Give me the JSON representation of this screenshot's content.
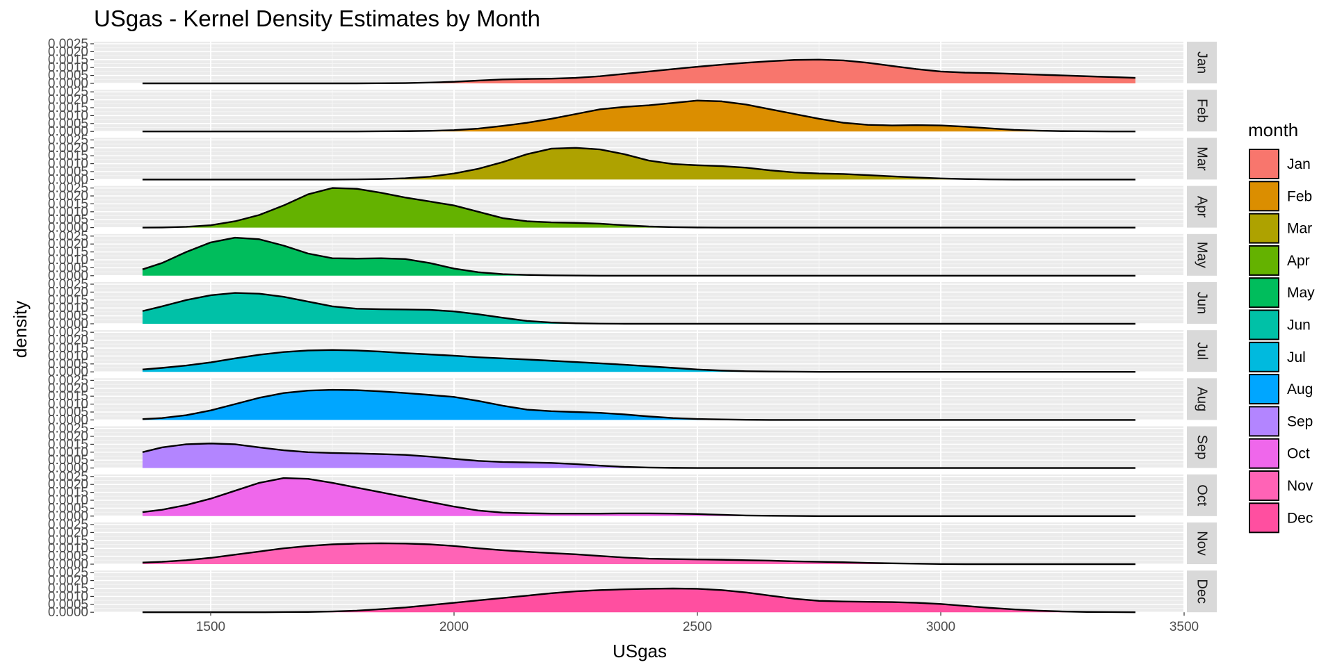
{
  "chart_data": {
    "type": "area",
    "subtype": "faceted-kernel-density",
    "title": "USgas - Kernel Density Estimates by Month",
    "xlabel": "USgas",
    "ylabel": "density",
    "xlim": [
      1260,
      3500
    ],
    "ylim": [
      0,
      0.0025
    ],
    "x_ticks": [
      1500,
      2000,
      2500,
      3000,
      3500
    ],
    "x_tick_labels": [
      "1500",
      "2000",
      "2500",
      "3000",
      "3500"
    ],
    "y_ticks": [
      0,
      0.0005,
      0.001,
      0.0015,
      0.002,
      0.0025
    ],
    "y_tick_labels": [
      "0.0000",
      "0.0005",
      "0.0010",
      "0.0015",
      "0.0020",
      "0.0025"
    ],
    "grid": true,
    "legend": {
      "title": "month",
      "position": "right"
    },
    "x": [
      1360,
      1400,
      1450,
      1500,
      1550,
      1600,
      1650,
      1700,
      1750,
      1800,
      1850,
      1900,
      1950,
      2000,
      2050,
      2100,
      2150,
      2200,
      2250,
      2300,
      2350,
      2400,
      2450,
      2500,
      2550,
      2600,
      2650,
      2700,
      2750,
      2800,
      2850,
      2900,
      2950,
      3000,
      3050,
      3100,
      3150,
      3200,
      3250,
      3300,
      3350,
      3400
    ],
    "series": [
      {
        "name": "Jan",
        "color": "#F8766D",
        "values": [
          0,
          0,
          0,
          0,
          0,
          0,
          0,
          0,
          0,
          0,
          1e-05,
          2e-05,
          5e-05,
          0.0001,
          0.00018,
          0.00025,
          0.00028,
          0.0003,
          0.00035,
          0.00045,
          0.0006,
          0.00075,
          0.0009,
          0.00105,
          0.00118,
          0.0013,
          0.0014,
          0.00148,
          0.0015,
          0.00145,
          0.0013,
          0.0011,
          0.0009,
          0.00075,
          0.00068,
          0.00065,
          0.0006,
          0.00055,
          0.0005,
          0.00045,
          0.0004,
          0.00035
        ]
      },
      {
        "name": "Feb",
        "color": "#DB8E00",
        "values": [
          0,
          0,
          0,
          0,
          0,
          0,
          0,
          0,
          0,
          0,
          1e-05,
          2e-05,
          4e-05,
          8e-05,
          0.00018,
          0.00035,
          0.00055,
          0.0008,
          0.0011,
          0.0014,
          0.00155,
          0.00165,
          0.0018,
          0.00195,
          0.0019,
          0.0017,
          0.0014,
          0.0011,
          0.0008,
          0.00055,
          0.00042,
          0.00038,
          0.0004,
          0.00038,
          0.0003,
          0.0002,
          0.0001,
          5e-05,
          2e-05,
          1e-05,
          0,
          0
        ]
      },
      {
        "name": "Mar",
        "color": "#AEA200",
        "values": [
          0,
          0,
          0,
          0,
          0,
          0,
          0,
          0,
          0,
          1e-05,
          3e-05,
          8e-05,
          0.00018,
          0.00038,
          0.00068,
          0.0011,
          0.0016,
          0.00195,
          0.002,
          0.0019,
          0.0016,
          0.0012,
          0.00098,
          0.0009,
          0.00085,
          0.00075,
          0.00058,
          0.00045,
          0.00038,
          0.00035,
          0.00028,
          0.0002,
          0.00013,
          7e-05,
          3e-05,
          1e-05,
          0,
          0,
          0,
          0,
          0,
          0
        ]
      },
      {
        "name": "Apr",
        "color": "#64B200",
        "values": [
          0,
          1e-05,
          5e-05,
          0.00015,
          0.0004,
          0.0008,
          0.0014,
          0.0021,
          0.0025,
          0.00245,
          0.0022,
          0.0019,
          0.00165,
          0.0014,
          0.001,
          0.0006,
          0.0004,
          0.00033,
          0.0003,
          0.00025,
          0.00015,
          7e-05,
          3e-05,
          1e-05,
          0,
          0,
          0,
          0,
          0,
          0,
          0,
          0,
          0,
          0,
          0,
          0,
          0,
          0,
          0,
          0,
          0,
          0
        ]
      },
      {
        "name": "May",
        "color": "#00BD5C",
        "values": [
          0.0004,
          0.0008,
          0.0015,
          0.0021,
          0.0024,
          0.0023,
          0.0019,
          0.0014,
          0.0011,
          0.00108,
          0.0011,
          0.00105,
          0.0008,
          0.00045,
          0.00022,
          0.0001,
          5e-05,
          2e-05,
          1e-05,
          0,
          0,
          0,
          0,
          0,
          0,
          0,
          0,
          0,
          0,
          0,
          0,
          0,
          0,
          0,
          0,
          0,
          0,
          0,
          0,
          0,
          0,
          0
        ]
      },
      {
        "name": "Jun",
        "color": "#00C1A7",
        "values": [
          0.0008,
          0.0011,
          0.0015,
          0.0018,
          0.00195,
          0.0019,
          0.0017,
          0.0014,
          0.0011,
          0.00095,
          0.00092,
          0.0009,
          0.00088,
          0.00078,
          0.0006,
          0.00038,
          0.00018,
          8e-05,
          3e-05,
          1e-05,
          0,
          0,
          0,
          0,
          0,
          0,
          0,
          0,
          0,
          0,
          0,
          0,
          0,
          0,
          0,
          0,
          0,
          0,
          0,
          0,
          0,
          0
        ]
      },
      {
        "name": "Jul",
        "color": "#00BADE",
        "values": [
          0.00015,
          0.00025,
          0.0004,
          0.0006,
          0.00085,
          0.00108,
          0.00125,
          0.00135,
          0.00138,
          0.00135,
          0.00128,
          0.00118,
          0.0011,
          0.00102,
          0.00092,
          0.00085,
          0.00078,
          0.0007,
          0.00062,
          0.00054,
          0.00045,
          0.00035,
          0.00025,
          0.00015,
          8e-05,
          4e-05,
          2e-05,
          1e-05,
          0,
          0,
          0,
          0,
          0,
          0,
          0,
          0,
          0,
          0,
          0,
          0,
          0,
          0
        ]
      },
      {
        "name": "Aug",
        "color": "#00A6FF",
        "values": [
          5e-05,
          0.00012,
          0.0003,
          0.0006,
          0.001,
          0.0014,
          0.0017,
          0.00185,
          0.0019,
          0.00188,
          0.0018,
          0.0017,
          0.00158,
          0.00145,
          0.0012,
          0.0009,
          0.00065,
          0.00055,
          0.0005,
          0.00045,
          0.00035,
          0.00022,
          0.00012,
          6e-05,
          3e-05,
          1e-05,
          0,
          0,
          0,
          0,
          0,
          0,
          0,
          0,
          0,
          0,
          0,
          0,
          0,
          0,
          0,
          0
        ]
      },
      {
        "name": "Sep",
        "color": "#B385FF",
        "values": [
          0.001,
          0.0013,
          0.0015,
          0.00155,
          0.0015,
          0.0013,
          0.00112,
          0.001,
          0.00095,
          0.00092,
          0.00088,
          0.00083,
          0.00072,
          0.00058,
          0.00045,
          0.00038,
          0.00035,
          0.00032,
          0.00025,
          0.00015,
          7e-05,
          3e-05,
          1e-05,
          0,
          0,
          0,
          0,
          0,
          0,
          0,
          0,
          0,
          0,
          0,
          0,
          0,
          0,
          0,
          0,
          0,
          0,
          0
        ]
      },
      {
        "name": "Oct",
        "color": "#EF67EB",
        "values": [
          0.00025,
          0.0004,
          0.0007,
          0.0011,
          0.0016,
          0.0021,
          0.0024,
          0.00235,
          0.0021,
          0.0018,
          0.0015,
          0.0012,
          0.0009,
          0.0006,
          0.00035,
          0.00022,
          0.00018,
          0.00016,
          0.00016,
          0.00016,
          0.00017,
          0.00017,
          0.00016,
          0.00013,
          8e-05,
          4e-05,
          2e-05,
          1e-05,
          0,
          0,
          0,
          0,
          0,
          0,
          0,
          0,
          0,
          0,
          0,
          0,
          0,
          0
        ]
      },
      {
        "name": "Nov",
        "color": "#FF63B6",
        "values": [
          0.0001,
          0.00015,
          0.00025,
          0.0004,
          0.0006,
          0.0008,
          0.001,
          0.00115,
          0.00125,
          0.0013,
          0.00132,
          0.0013,
          0.00125,
          0.00115,
          0.001,
          0.00088,
          0.00078,
          0.0007,
          0.00062,
          0.00052,
          0.00042,
          0.00035,
          0.00032,
          0.0003,
          0.00028,
          0.00025,
          0.00022,
          0.00018,
          0.00015,
          0.00012,
          8e-05,
          5e-05,
          3e-05,
          1e-05,
          0,
          0,
          0,
          0,
          0,
          0,
          0,
          0
        ]
      },
      {
        "name": "Dec",
        "color": "#FF4FA0",
        "values": [
          0,
          0,
          0,
          0,
          0,
          0,
          1e-05,
          2e-05,
          5e-05,
          0.0001,
          0.0002,
          0.0003,
          0.00045,
          0.0006,
          0.00075,
          0.0009,
          0.00105,
          0.0012,
          0.00132,
          0.0014,
          0.00145,
          0.00148,
          0.0015,
          0.00148,
          0.0014,
          0.00125,
          0.00105,
          0.00085,
          0.00072,
          0.00068,
          0.00066,
          0.00064,
          0.0006,
          0.00052,
          0.0004,
          0.00028,
          0.00018,
          0.0001,
          5e-05,
          2e-05,
          1e-05,
          0
        ]
      }
    ]
  }
}
